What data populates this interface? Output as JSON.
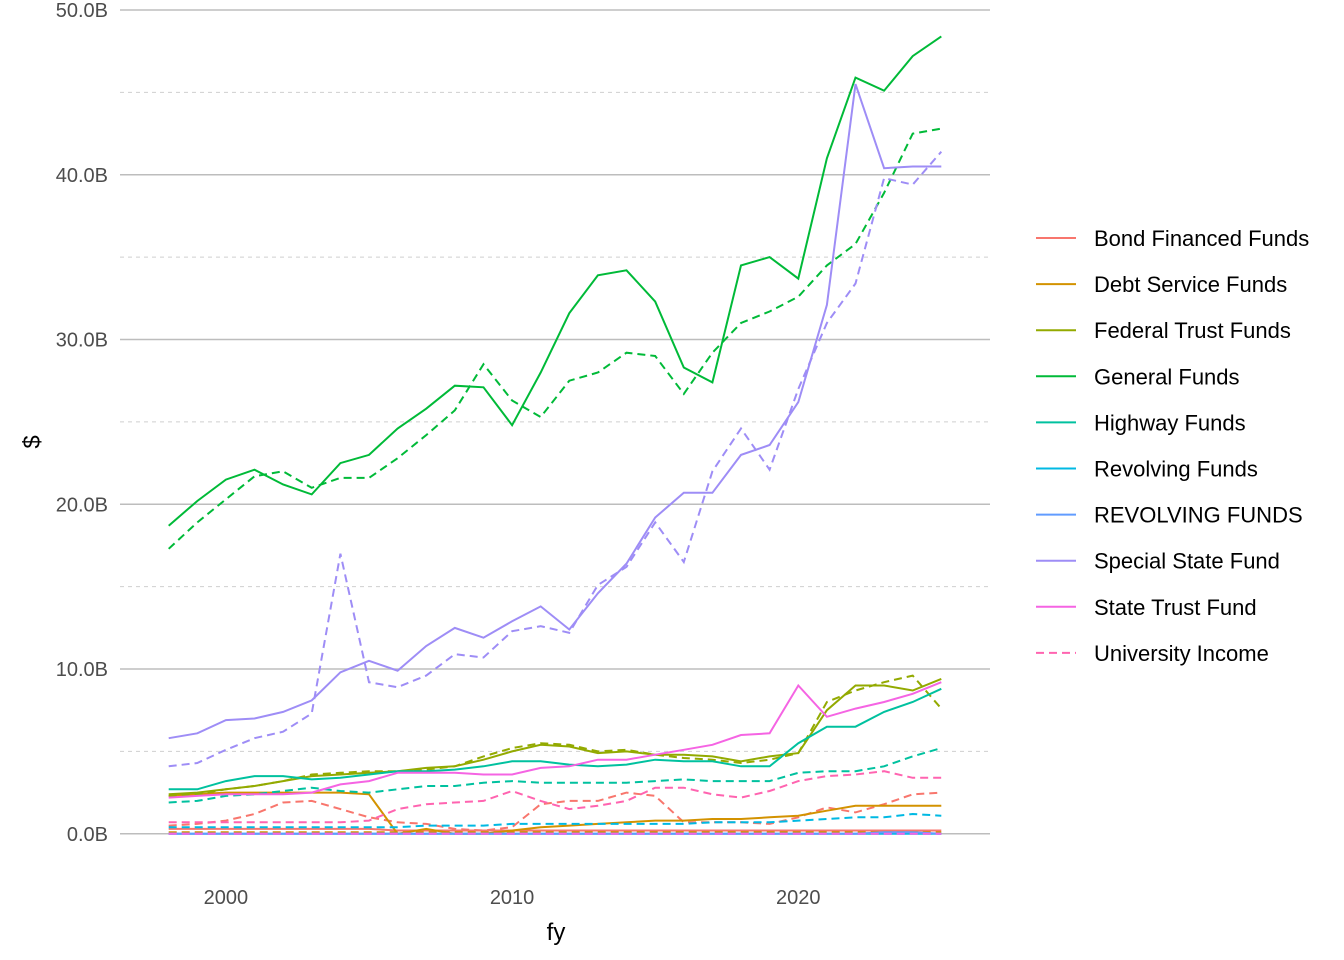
{
  "chart_data": {
    "type": "line",
    "title": "",
    "xlabel": "fy",
    "ylabel": "$",
    "xlim": [
      1996.3,
      2026.7
    ],
    "ylim": [
      -2.5,
      50.0
    ],
    "x_ticks": [
      2000,
      2010,
      2020
    ],
    "y_ticks": [
      0,
      10,
      20,
      30,
      40,
      50
    ],
    "y_tick_labels": [
      "0.0B",
      "10.0B",
      "20.0B",
      "30.0B",
      "40.0B",
      "50.0B"
    ],
    "grid": true,
    "legend_position": "right",
    "linetype_note": "solid and dashed line per fund",
    "x": [
      1998,
      1999,
      2000,
      2001,
      2002,
      2003,
      2004,
      2005,
      2006,
      2007,
      2008,
      2009,
      2010,
      2011,
      2012,
      2013,
      2014,
      2015,
      2016,
      2017,
      2018,
      2019,
      2020,
      2021,
      2022,
      2023,
      2024,
      2025
    ],
    "series": [
      {
        "name": "Bond Financed Funds",
        "color": "#F8766D",
        "solid": [
          0.3,
          0.3,
          0.3,
          0.3,
          0.3,
          0.3,
          0.3,
          0.3,
          0.2,
          0.2,
          0.2,
          0.2,
          0.2,
          0.2,
          0.2,
          0.2,
          0.2,
          0.2,
          0.2,
          0.2,
          0.2,
          0.2,
          0.2,
          0.2,
          0.2,
          0.2,
          0.2,
          0.2
        ],
        "dashed": [
          0.5,
          0.6,
          0.8,
          1.2,
          1.9,
          2.0,
          1.5,
          1.0,
          0.7,
          0.6,
          0.3,
          0.2,
          0.4,
          1.8,
          2.0,
          2.0,
          2.5,
          2.3,
          0.7,
          0.7,
          0.7,
          0.6,
          1.0,
          1.6,
          1.3,
          1.8,
          2.4,
          2.5
        ]
      },
      {
        "name": "Debt Service Funds",
        "color": "#D39200",
        "solid": [
          2.3,
          2.4,
          2.5,
          2.5,
          2.5,
          2.5,
          2.5,
          2.4,
          0.0,
          0.3,
          0.0,
          0.0,
          0.2,
          0.4,
          0.5,
          0.6,
          0.7,
          0.8,
          0.8,
          0.9,
          0.9,
          1.0,
          1.1,
          1.4,
          1.7,
          1.7,
          1.7,
          1.7
        ],
        "dashed": [
          0.1,
          0.1,
          0.1,
          0.1,
          0.1,
          0.1,
          0.1,
          0.1,
          0.1,
          0.1,
          0.1,
          0.1,
          0.1,
          0.1,
          0.1,
          0.1,
          0.1,
          0.1,
          0.1,
          0.1,
          0.1,
          0.1,
          0.1,
          0.1,
          0.1,
          0.1,
          0.1,
          0.1
        ]
      },
      {
        "name": "Federal Trust Funds",
        "color": "#93AA00",
        "solid": [
          2.4,
          2.5,
          2.7,
          2.9,
          3.2,
          3.5,
          3.6,
          3.7,
          3.8,
          4.0,
          4.1,
          4.5,
          5.0,
          5.4,
          5.3,
          4.9,
          5.0,
          4.8,
          4.8,
          4.7,
          4.4,
          4.7,
          4.9,
          7.5,
          9.0,
          9.0,
          8.7,
          9.4
        ],
        "dashed": [
          2.3,
          2.4,
          2.7,
          2.9,
          3.2,
          3.6,
          3.7,
          3.8,
          3.8,
          3.9,
          4.1,
          4.7,
          5.2,
          5.5,
          5.4,
          5.0,
          5.1,
          4.8,
          4.6,
          4.5,
          4.3,
          4.5,
          4.9,
          8.0,
          8.7,
          9.2,
          9.6,
          7.6
        ]
      },
      {
        "name": "General Funds",
        "color": "#00BA38",
        "solid": [
          18.7,
          20.2,
          21.5,
          22.1,
          21.2,
          20.6,
          22.5,
          23.0,
          24.6,
          25.8,
          27.2,
          27.1,
          24.8,
          28.0,
          31.6,
          33.9,
          34.2,
          32.3,
          28.3,
          27.4,
          34.5,
          35.0,
          33.7,
          41.0,
          45.9,
          45.1,
          47.2,
          48.4
        ],
        "dashed": [
          17.3,
          18.9,
          20.3,
          21.7,
          22.0,
          21.0,
          21.6,
          21.6,
          22.8,
          24.2,
          25.7,
          28.5,
          26.3,
          25.3,
          27.5,
          28.0,
          29.2,
          29.0,
          26.7,
          29.2,
          31.0,
          31.7,
          32.6,
          34.5,
          35.8,
          38.9,
          42.5,
          42.8
        ]
      },
      {
        "name": "Highway Funds",
        "color": "#00C19F",
        "solid": [
          2.7,
          2.7,
          3.2,
          3.5,
          3.5,
          3.3,
          3.4,
          3.6,
          3.8,
          3.8,
          3.9,
          4.1,
          4.4,
          4.4,
          4.2,
          4.1,
          4.2,
          4.5,
          4.4,
          4.4,
          4.1,
          4.1,
          5.5,
          6.5,
          6.5,
          7.4,
          8.0,
          8.8
        ],
        "dashed": [
          1.9,
          2.0,
          2.3,
          2.4,
          2.6,
          2.8,
          2.6,
          2.5,
          2.7,
          2.9,
          2.9,
          3.1,
          3.2,
          3.1,
          3.1,
          3.1,
          3.1,
          3.2,
          3.3,
          3.2,
          3.2,
          3.2,
          3.7,
          3.8,
          3.8,
          4.1,
          4.7,
          5.2
        ]
      },
      {
        "name": "Revolving Funds",
        "color": "#00B9E3",
        "solid": [
          0.0,
          0.0,
          0.0,
          0.0,
          0.0,
          0.0,
          0.0,
          0.0,
          0.0,
          0.0,
          0.0,
          0.0,
          0.0,
          0.0,
          0.0,
          0.0,
          0.0,
          0.0,
          0.0,
          0.0,
          0.0,
          0.0,
          0.0,
          0.0,
          0.0,
          0.0,
          0.0,
          0.0
        ],
        "dashed": [
          0.4,
          0.4,
          0.4,
          0.4,
          0.4,
          0.4,
          0.4,
          0.4,
          0.4,
          0.5,
          0.5,
          0.5,
          0.6,
          0.6,
          0.6,
          0.6,
          0.6,
          0.6,
          0.6,
          0.7,
          0.7,
          0.7,
          0.8,
          0.9,
          1.0,
          1.0,
          1.2,
          1.1
        ]
      },
      {
        "name": "REVOLVING FUNDS",
        "color": "#619CFF",
        "solid": [
          0.0,
          0.0,
          0.0,
          0.0,
          0.0,
          0.0,
          0.0,
          0.0,
          0.0,
          0.0,
          0.0,
          0.0,
          0.0,
          0.0,
          0.0,
          0.0,
          0.0,
          0.0,
          0.0,
          0.0,
          0.0,
          0.0,
          0.0,
          0.0,
          0.0,
          0.1,
          0.1,
          0.0
        ],
        "dashed": [
          0.0,
          0.0,
          0.0,
          0.0,
          0.0,
          0.0,
          0.0,
          0.0,
          0.0,
          0.0,
          0.0,
          0.0,
          0.0,
          0.0,
          0.0,
          0.0,
          0.0,
          0.0,
          0.0,
          0.0,
          0.0,
          0.0,
          0.0,
          0.0,
          0.0,
          0.0,
          0.0,
          0.0
        ]
      },
      {
        "name": "Special State Fund",
        "color": "#9E8DF6",
        "solid": [
          5.8,
          6.1,
          6.9,
          7.0,
          7.4,
          8.1,
          9.8,
          10.5,
          9.9,
          11.4,
          12.5,
          11.9,
          12.9,
          13.8,
          12.4,
          14.6,
          16.4,
          19.2,
          20.7,
          20.7,
          23.0,
          23.6,
          26.2,
          32.1,
          45.5,
          40.4,
          40.5,
          40.5
        ],
        "dashed": [
          4.1,
          4.3,
          5.1,
          5.8,
          6.2,
          7.3,
          17.0,
          9.2,
          8.9,
          9.6,
          10.9,
          10.7,
          12.3,
          12.6,
          12.2,
          15.1,
          16.2,
          18.9,
          16.5,
          22.0,
          24.6,
          22.1,
          27.0,
          31.0,
          33.4,
          39.8,
          39.4,
          41.4
        ]
      },
      {
        "name": "State Trust Fund",
        "color": "#F564E3",
        "solid": [
          2.2,
          2.3,
          2.4,
          2.4,
          2.4,
          2.5,
          3.0,
          3.2,
          3.7,
          3.7,
          3.7,
          3.6,
          3.6,
          4.0,
          4.1,
          4.5,
          4.5,
          4.8,
          5.1,
          5.4,
          6.0,
          6.1,
          9.0,
          7.1,
          7.6,
          8.0,
          8.5,
          9.2
        ],
        "dashed": [
          0.0,
          0.0,
          0.0,
          0.0,
          0.0,
          0.0,
          0.0,
          0.0,
          0.0,
          0.0,
          0.0,
          0.0,
          0.0,
          0.0,
          0.0,
          0.0,
          0.0,
          0.0,
          0.0,
          0.0,
          0.0,
          0.0,
          0.0,
          0.0,
          0.0,
          0.0,
          0.0,
          0.0
        ]
      },
      {
        "name": "University Income",
        "color": "#FF64B0",
        "solid": [],
        "dashed": [
          0.7,
          0.7,
          0.7,
          0.7,
          0.7,
          0.7,
          0.7,
          0.8,
          1.5,
          1.8,
          1.9,
          2.0,
          2.6,
          2.0,
          1.5,
          1.7,
          2.0,
          2.8,
          2.8,
          2.4,
          2.2,
          2.6,
          3.2,
          3.5,
          3.6,
          3.8,
          3.4,
          3.4
        ]
      }
    ]
  }
}
